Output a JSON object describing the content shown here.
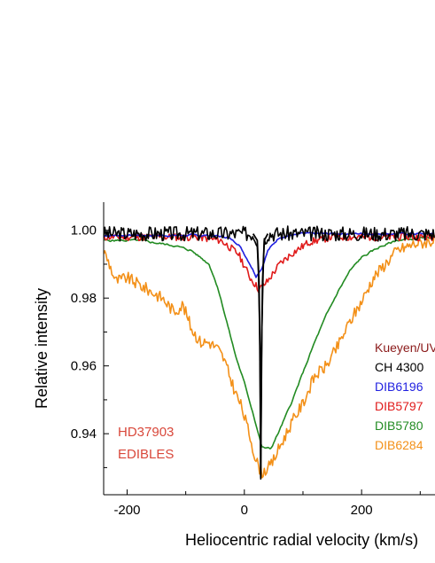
{
  "chart_data": {
    "type": "line",
    "xlabel": "Heliocentric radial velocity (km/s)",
    "ylabel": "Relative intensity",
    "xlim": [
      -240,
      325
    ],
    "ylim": [
      0.922,
      1.007
    ],
    "x_ticks": [
      -200,
      0,
      200
    ],
    "x_tick_labels": [
      "-200",
      "0",
      "200"
    ],
    "y_ticks": [
      0.94,
      0.96,
      0.98,
      1.0
    ],
    "y_tick_labels": [
      "0.94",
      "0.96",
      "0.98",
      "1.00"
    ],
    "legend_title": "Kueyen/UV",
    "legend_title_color": "#8B1A1A",
    "annotation": {
      "lines": [
        "HD37903",
        "EDIBLES"
      ],
      "color": "#d9483b"
    },
    "series": [
      {
        "name": "CH 4300",
        "color": "#000000",
        "noise": 0.0022,
        "seed": 3,
        "jag": 1,
        "points": [
          [
            -240,
            0.999
          ],
          [
            15,
            0.999
          ],
          [
            22,
            0.997
          ],
          [
            25,
            0.985
          ],
          [
            27,
            0.96
          ],
          [
            28,
            0.927
          ],
          [
            29,
            0.96
          ],
          [
            31,
            0.985
          ],
          [
            34,
            0.997
          ],
          [
            40,
            0.999
          ],
          [
            325,
            0.999
          ]
        ]
      },
      {
        "name": "DIB6196",
        "color": "#1f1fe0",
        "noise": 0.0006,
        "seed": 7,
        "jag": 0,
        "points": [
          [
            -240,
            0.9985
          ],
          [
            -60,
            0.9985
          ],
          [
            -30,
            0.998
          ],
          [
            -10,
            0.996
          ],
          [
            0,
            0.993
          ],
          [
            10,
            0.99
          ],
          [
            20,
            0.9865
          ],
          [
            30,
            0.989
          ],
          [
            40,
            0.994
          ],
          [
            60,
            0.998
          ],
          [
            100,
            0.999
          ],
          [
            325,
            0.999
          ]
        ]
      },
      {
        "name": "DIB5797",
        "color": "#e01b1b",
        "noise": 0.0011,
        "seed": 11,
        "jag": 1,
        "points": [
          [
            -240,
            0.998
          ],
          [
            -80,
            0.998
          ],
          [
            -40,
            0.997
          ],
          [
            -10,
            0.993
          ],
          [
            10,
            0.986
          ],
          [
            25,
            0.9825
          ],
          [
            40,
            0.985
          ],
          [
            60,
            0.99
          ],
          [
            80,
            0.993
          ],
          [
            110,
            0.9965
          ],
          [
            150,
            0.998
          ],
          [
            325,
            0.998
          ]
        ]
      },
      {
        "name": "DIB5780",
        "color": "#228b22",
        "noise": 0.0006,
        "seed": 5,
        "jag": 0,
        "points": [
          [
            -240,
            0.997
          ],
          [
            -180,
            0.997
          ],
          [
            -120,
            0.9955
          ],
          [
            -90,
            0.994
          ],
          [
            -60,
            0.99
          ],
          [
            -45,
            0.983
          ],
          [
            -30,
            0.973
          ],
          [
            -15,
            0.963
          ],
          [
            0,
            0.955
          ],
          [
            15,
            0.946
          ],
          [
            30,
            0.936
          ],
          [
            45,
            0.9355
          ],
          [
            60,
            0.941
          ],
          [
            80,
            0.949
          ],
          [
            100,
            0.958
          ],
          [
            120,
            0.967
          ],
          [
            140,
            0.975
          ],
          [
            160,
            0.982
          ],
          [
            180,
            0.988
          ],
          [
            200,
            0.992
          ],
          [
            230,
            0.995
          ],
          [
            260,
            0.997
          ],
          [
            325,
            0.998
          ]
        ]
      },
      {
        "name": "DIB6284",
        "color": "#f39018",
        "noise": 0.0018,
        "seed": 9,
        "jag": 1,
        "points": [
          [
            -240,
            0.994
          ],
          [
            -230,
            0.99
          ],
          [
            -220,
            0.985
          ],
          [
            -200,
            0.986
          ],
          [
            -180,
            0.984
          ],
          [
            -160,
            0.982
          ],
          [
            -140,
            0.98
          ],
          [
            -120,
            0.976
          ],
          [
            -105,
            0.978
          ],
          [
            -90,
            0.971
          ],
          [
            -75,
            0.967
          ],
          [
            -60,
            0.967
          ],
          [
            -45,
            0.965
          ],
          [
            -35,
            0.962
          ],
          [
            -25,
            0.957
          ],
          [
            -15,
            0.952
          ],
          [
            -5,
            0.948
          ],
          [
            10,
            0.939
          ],
          [
            20,
            0.932
          ],
          [
            30,
            0.9285
          ],
          [
            45,
            0.9305
          ],
          [
            60,
            0.936
          ],
          [
            80,
            0.943
          ],
          [
            100,
            0.949
          ],
          [
            120,
            0.957
          ],
          [
            140,
            0.96
          ],
          [
            160,
            0.966
          ],
          [
            180,
            0.973
          ],
          [
            200,
            0.979
          ],
          [
            220,
            0.986
          ],
          [
            240,
            0.99
          ],
          [
            260,
            0.994
          ],
          [
            290,
            0.996
          ],
          [
            325,
            0.997
          ]
        ]
      }
    ]
  }
}
